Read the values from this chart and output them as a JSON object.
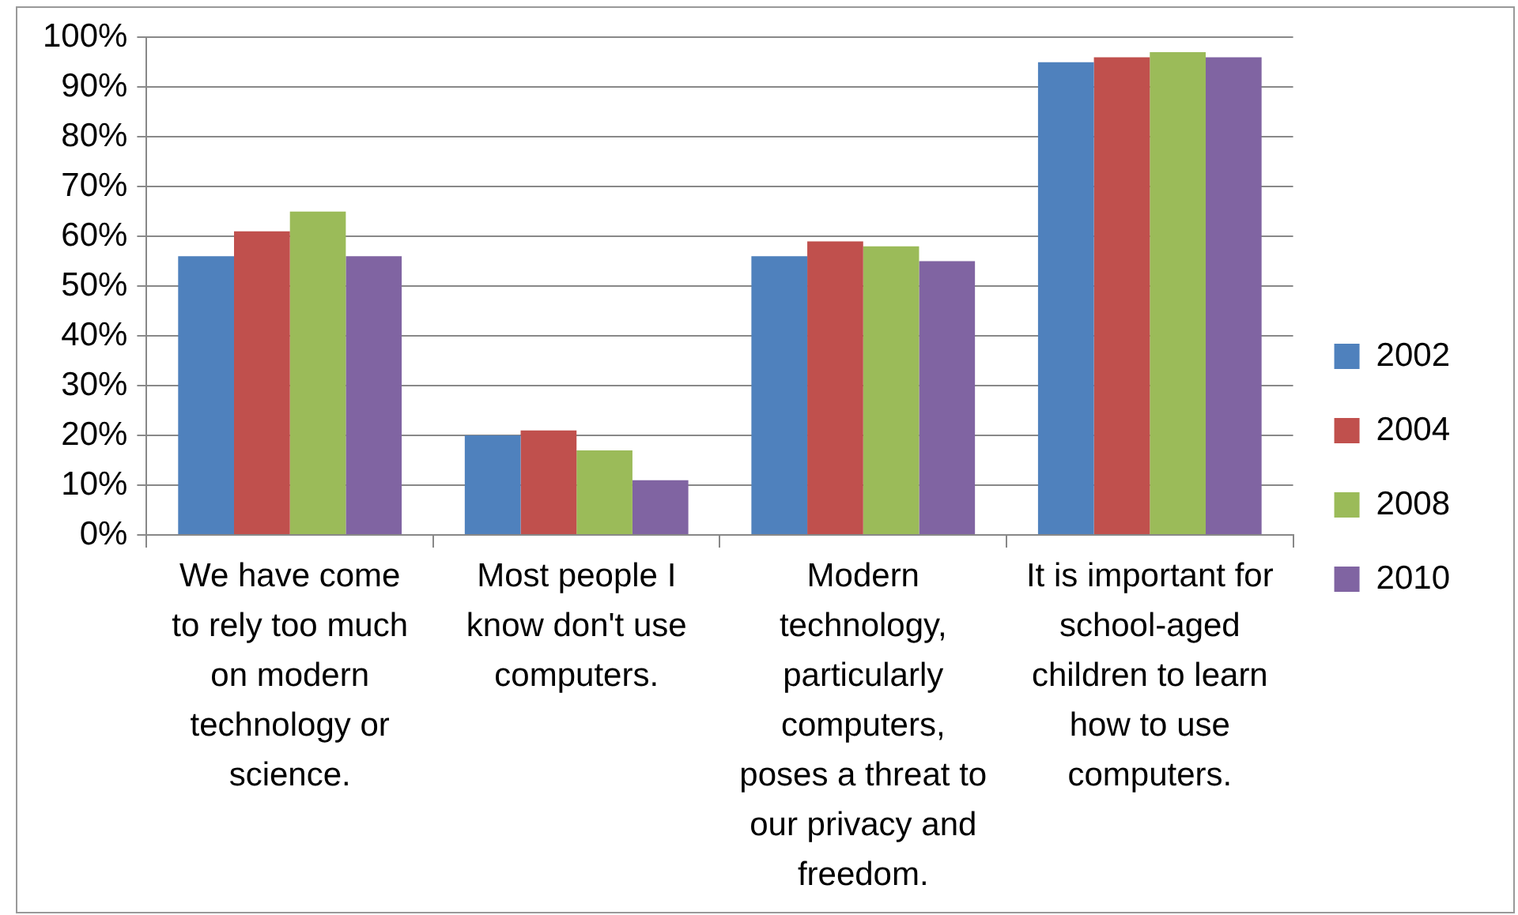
{
  "chart_data": {
    "type": "bar",
    "categories": [
      "We have come to rely too much on modern technology or science.",
      "Most people I know don't use computers.",
      "Modern technology, particularly computers, poses a threat to our privacy and freedom.",
      "It is important for school-aged children to learn how to use computers."
    ],
    "series": [
      {
        "name": "2002",
        "color": "#4f81bd",
        "values": [
          56,
          20,
          56,
          95
        ]
      },
      {
        "name": "2004",
        "color": "#c0504d",
        "values": [
          61,
          21,
          59,
          96
        ]
      },
      {
        "name": "2008",
        "color": "#9bbb59",
        "values": [
          65,
          17,
          58,
          97
        ]
      },
      {
        "name": "2010",
        "color": "#8064a2",
        "values": [
          56,
          11,
          55,
          96
        ]
      }
    ],
    "ylim": [
      0,
      100
    ],
    "yticks": [
      {
        "value": 0,
        "label": "0%"
      },
      {
        "value": 10,
        "label": "10%"
      },
      {
        "value": 20,
        "label": "20%"
      },
      {
        "value": 30,
        "label": "30%"
      },
      {
        "value": 40,
        "label": "40%"
      },
      {
        "value": 50,
        "label": "50%"
      },
      {
        "value": 60,
        "label": "60%"
      },
      {
        "value": 70,
        "label": "70%"
      },
      {
        "value": 80,
        "label": "80%"
      },
      {
        "value": 90,
        "label": "90%"
      },
      {
        "value": 100,
        "label": "100%"
      }
    ],
    "grid": "y",
    "legend": "right"
  }
}
